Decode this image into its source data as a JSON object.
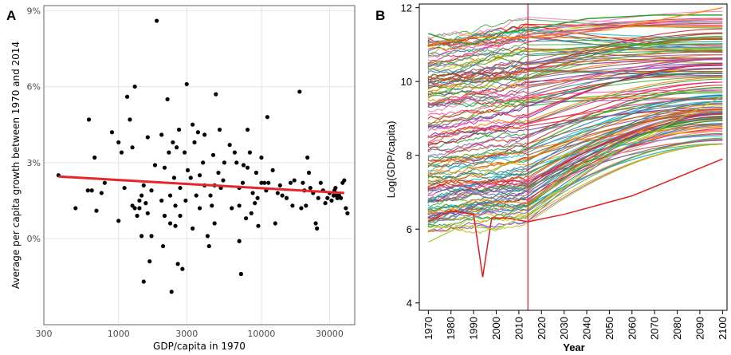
{
  "colors": {
    "fit_line": "#e8262a",
    "points": "#000000",
    "vertical_marker": "#e03a4a",
    "grid": "#e5e5e5",
    "panel_border": "#666666"
  },
  "chart_data": [
    {
      "panel_label": "A",
      "type": "scatter",
      "xlabel": "GDP/capita in 1970",
      "ylabel": "Average per capita growth between 1970 and 2014",
      "xscale": "log",
      "xlim": [
        300,
        45000
      ],
      "ylim": [
        -3.4,
        9.2
      ],
      "xticks": [
        300,
        1000,
        3000,
        10000,
        30000
      ],
      "xtick_labels": [
        "300",
        "1000",
        "3000",
        "10000",
        "30000"
      ],
      "yticks": [
        0,
        3,
        6,
        9
      ],
      "ytick_labels": [
        "0%",
        "3%",
        "6%",
        "9%"
      ],
      "grid": true,
      "fit_line": {
        "x": [
          380,
          38000
        ],
        "y": [
          2.45,
          1.8
        ]
      },
      "points": [
        [
          380,
          2.5
        ],
        [
          500,
          1.2
        ],
        [
          610,
          1.9
        ],
        [
          620,
          4.7
        ],
        [
          650,
          1.9
        ],
        [
          680,
          3.2
        ],
        [
          700,
          1.1
        ],
        [
          760,
          1.8
        ],
        [
          800,
          2.2
        ],
        [
          900,
          4.2
        ],
        [
          1000,
          3.8
        ],
        [
          1000,
          0.7
        ],
        [
          1050,
          3.4
        ],
        [
          1100,
          2.0
        ],
        [
          1150,
          5.6
        ],
        [
          1200,
          4.7
        ],
        [
          1250,
          3.6
        ],
        [
          1250,
          1.3
        ],
        [
          1300,
          6.0
        ],
        [
          1300,
          1.2
        ],
        [
          1350,
          0.9
        ],
        [
          1400,
          1.5
        ],
        [
          1400,
          1.2
        ],
        [
          1450,
          1.7
        ],
        [
          1450,
          0.1
        ],
        [
          1500,
          2.1
        ],
        [
          1500,
          -1.7
        ],
        [
          1550,
          1.4
        ],
        [
          1600,
          4.0
        ],
        [
          1600,
          1.0
        ],
        [
          1650,
          -0.9
        ],
        [
          1700,
          0.1
        ],
        [
          1700,
          1.9
        ],
        [
          1800,
          2.9
        ],
        [
          1850,
          8.6
        ],
        [
          2000,
          4.1
        ],
        [
          2000,
          1.5
        ],
        [
          2050,
          -0.3
        ],
        [
          2100,
          0.9
        ],
        [
          2100,
          2.8
        ],
        [
          2200,
          5.5
        ],
        [
          2250,
          3.4
        ],
        [
          2300,
          1.7
        ],
        [
          2300,
          0.6
        ],
        [
          2350,
          -2.1
        ],
        [
          2400,
          3.8
        ],
        [
          2450,
          2.4
        ],
        [
          2500,
          1.3
        ],
        [
          2500,
          0.5
        ],
        [
          2550,
          3.6
        ],
        [
          2600,
          -1.0
        ],
        [
          2650,
          4.3
        ],
        [
          2700,
          2.0
        ],
        [
          2700,
          0.9
        ],
        [
          2800,
          -1.2
        ],
        [
          2900,
          3.4
        ],
        [
          2950,
          1.5
        ],
        [
          3000,
          6.1
        ],
        [
          3050,
          2.7
        ],
        [
          3200,
          2.4
        ],
        [
          3300,
          4.5
        ],
        [
          3300,
          0.4
        ],
        [
          3400,
          3.8
        ],
        [
          3500,
          1.7
        ],
        [
          3600,
          4.2
        ],
        [
          3700,
          1.2
        ],
        [
          3700,
          2.5
        ],
        [
          3900,
          3.0
        ],
        [
          4000,
          4.1
        ],
        [
          4000,
          2.1
        ],
        [
          4200,
          0.1
        ],
        [
          4300,
          -0.3
        ],
        [
          4400,
          1.7
        ],
        [
          4500,
          1.3
        ],
        [
          4600,
          3.3
        ],
        [
          4700,
          2.1
        ],
        [
          4700,
          0.6
        ],
        [
          4800,
          5.7
        ],
        [
          5000,
          2.6
        ],
        [
          5100,
          4.3
        ],
        [
          5200,
          2.0
        ],
        [
          5400,
          2.3
        ],
        [
          5500,
          3.0
        ],
        [
          6000,
          3.7
        ],
        [
          6200,
          1.2
        ],
        [
          6500,
          3.4
        ],
        [
          6700,
          3.0
        ],
        [
          7000,
          2.0
        ],
        [
          7000,
          1.3
        ],
        [
          7000,
          -0.1
        ],
        [
          7200,
          -1.4
        ],
        [
          7400,
          2.2
        ],
        [
          7500,
          2.9
        ],
        [
          7800,
          0.8
        ],
        [
          8000,
          2.8
        ],
        [
          8000,
          4.3
        ],
        [
          8300,
          3.4
        ],
        [
          8500,
          1.0
        ],
        [
          8700,
          1.8
        ],
        [
          9000,
          1.4
        ],
        [
          9200,
          2.6
        ],
        [
          9400,
          1.6
        ],
        [
          9500,
          0.5
        ],
        [
          10000,
          2.2
        ],
        [
          10000,
          3.2
        ],
        [
          10500,
          2.2
        ],
        [
          10800,
          1.9
        ],
        [
          11000,
          4.8
        ],
        [
          11200,
          2.2
        ],
        [
          12000,
          2.7
        ],
        [
          12500,
          0.6
        ],
        [
          13000,
          1.8
        ],
        [
          13500,
          2.1
        ],
        [
          14000,
          1.7
        ],
        [
          15000,
          1.6
        ],
        [
          16000,
          2.2
        ],
        [
          16500,
          1.3
        ],
        [
          17000,
          2.3
        ],
        [
          18500,
          5.8
        ],
        [
          19000,
          1.2
        ],
        [
          19500,
          2.2
        ],
        [
          20000,
          1.9
        ],
        [
          20500,
          1.3
        ],
        [
          21000,
          3.2
        ],
        [
          21500,
          2.6
        ],
        [
          22000,
          2.0
        ],
        [
          23000,
          1.8
        ],
        [
          24000,
          0.6
        ],
        [
          24500,
          0.4
        ],
        [
          25000,
          1.6
        ],
        [
          26000,
          2.2
        ],
        [
          27000,
          1.9
        ],
        [
          28000,
          1.4
        ],
        [
          29000,
          1.6
        ],
        [
          30000,
          1.8
        ],
        [
          31000,
          1.5
        ],
        [
          32000,
          1.7
        ],
        [
          32500,
          1.9
        ],
        [
          33000,
          2.0
        ],
        [
          33500,
          1.7
        ],
        [
          34000,
          1.6
        ],
        [
          35000,
          1.7
        ],
        [
          36000,
          1.6
        ],
        [
          37000,
          2.2
        ],
        [
          38000,
          2.3
        ],
        [
          39000,
          1.2
        ],
        [
          40000,
          1.0
        ]
      ]
    },
    {
      "panel_label": "B",
      "type": "line",
      "xlabel": "Year",
      "ylabel": "Log(GDP/capita)",
      "xlim": [
        1966,
        2102
      ],
      "ylim": [
        3.8,
        12.1
      ],
      "xticks": [
        1970,
        1980,
        1990,
        2000,
        2010,
        2020,
        2030,
        2040,
        2050,
        2060,
        2070,
        2080,
        2090,
        2100
      ],
      "xtick_labels": [
        "1970",
        "1980",
        "1990",
        "2000",
        "2010",
        "2020",
        "2030",
        "2040",
        "2050",
        "2060",
        "2070",
        "2080",
        "2090",
        "2100"
      ],
      "yticks": [
        4,
        6,
        8,
        10,
        12
      ],
      "ytick_labels": [
        "4",
        "6",
        "8",
        "10",
        "12"
      ],
      "grid": false,
      "vertical_marker_x": 2014,
      "projection_end_year": 2100,
      "series_count": 150,
      "series_colors": [
        "#e41a1c",
        "#377eb8",
        "#4daf4a",
        "#984ea3",
        "#ff7f00",
        "#a65628",
        "#f781bf",
        "#17becf",
        "#1b9e77",
        "#d95f02",
        "#7570b3",
        "#e7298a",
        "#66a61e",
        "#e6ab02",
        "#1f78b4",
        "#33a02c",
        "#6a3d9a",
        "#b15928",
        "#8c564b",
        "#2ca02c",
        "#d62728",
        "#9467bd",
        "#bcbd22",
        "#ff4da6"
      ]
    }
  ]
}
